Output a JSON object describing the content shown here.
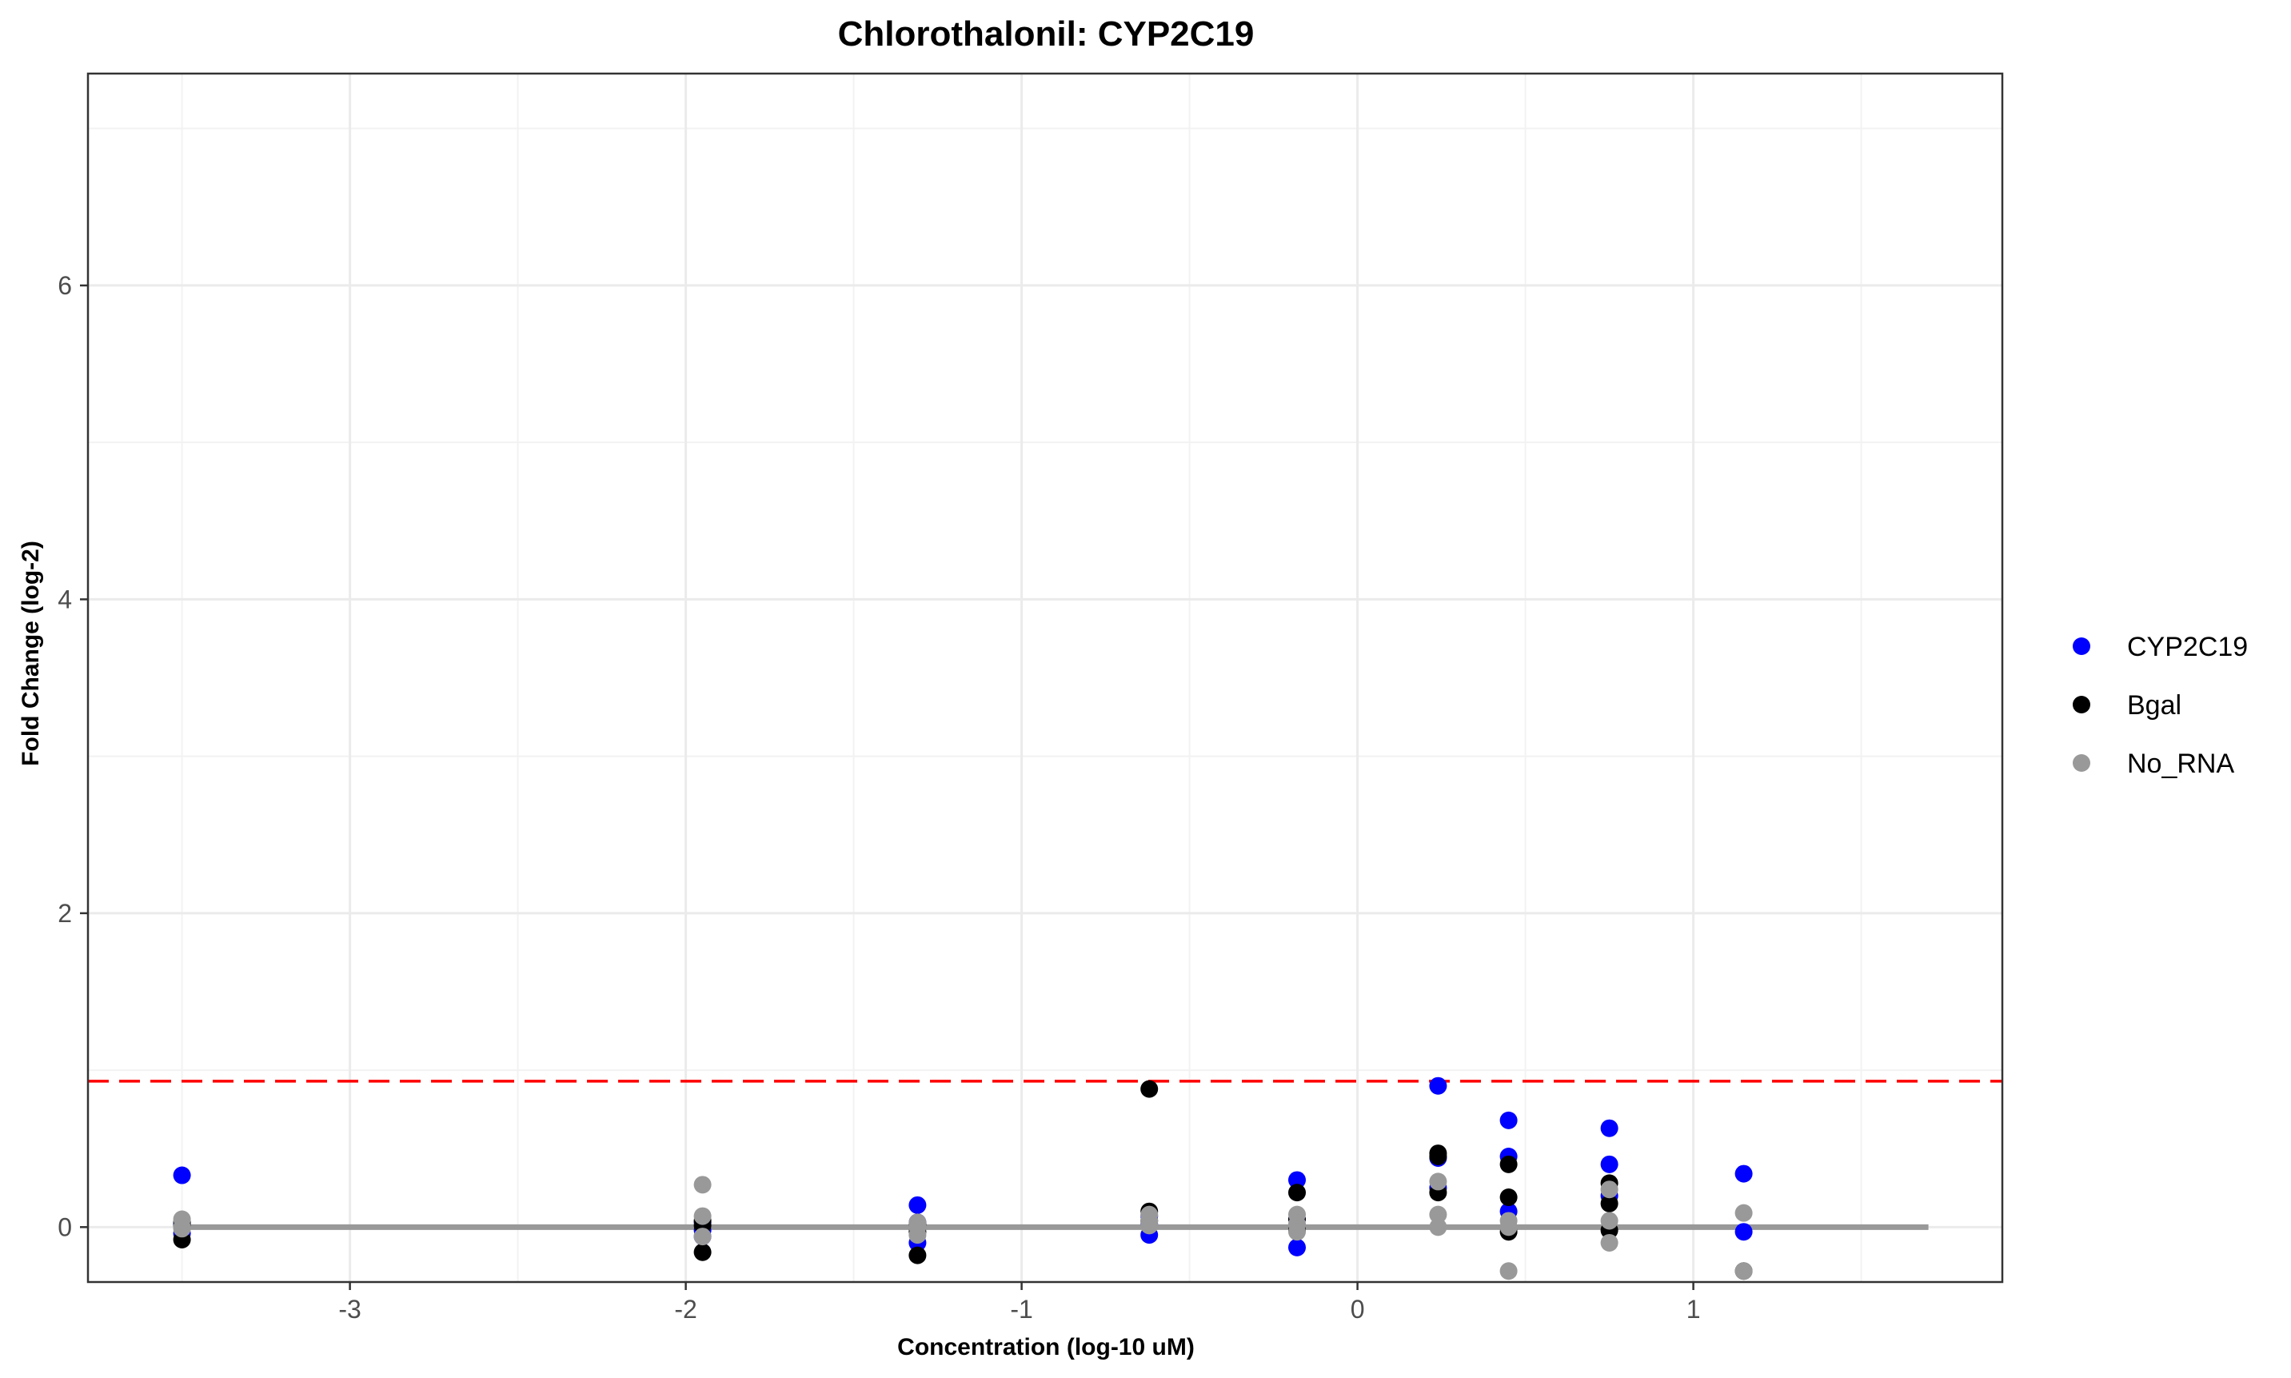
{
  "chart_data": {
    "type": "scatter",
    "title": "Chlorothalonil: CYP2C19",
    "xlabel": "Concentration (log-10 uM)",
    "ylabel": "Fold Change (log-2)",
    "xlim": [
      -3.78,
      1.92
    ],
    "ylim": [
      -0.35,
      7.35
    ],
    "x_ticks": [
      -3,
      -2,
      -1,
      0,
      1
    ],
    "x_tick_labels": [
      "-3",
      "-2",
      "-1",
      "0",
      "1"
    ],
    "x_minor_ticks": [
      -3.5,
      -2.5,
      -1.5,
      -0.5,
      0.5,
      1.5
    ],
    "y_ticks": [
      0,
      2,
      4,
      6
    ],
    "y_tick_labels": [
      "0",
      "2",
      "4",
      "6"
    ],
    "y_minor_ticks": [
      1,
      3,
      5,
      7
    ],
    "grid": true,
    "legend_position": "right",
    "reference_lines": [
      {
        "kind": "threshold",
        "y": 0.93,
        "color": "#ff0000",
        "dash": true
      },
      {
        "kind": "baseline",
        "y": 0,
        "x_range": [
          -3.5,
          1.7
        ],
        "color": "#999999"
      }
    ],
    "series": [
      {
        "name": "CYP2C19",
        "color": "#0000ff",
        "points": [
          [
            -3.5,
            0.33
          ],
          [
            -3.5,
            0.02
          ],
          [
            -3.5,
            -0.04
          ],
          [
            -1.95,
            0.03
          ],
          [
            -1.95,
            -0.02
          ],
          [
            -1.95,
            -0.06
          ],
          [
            -1.31,
            0.14
          ],
          [
            -1.31,
            -0.1
          ],
          [
            -1.31,
            0.03
          ],
          [
            -0.62,
            0.07
          ],
          [
            -0.62,
            0.02
          ],
          [
            -0.62,
            -0.05
          ],
          [
            -0.18,
            0.3
          ],
          [
            -0.18,
            -0.13
          ],
          [
            -0.18,
            0.05
          ],
          [
            0.24,
            0.9
          ],
          [
            0.24,
            0.44
          ],
          [
            0.24,
            0.25
          ],
          [
            0.45,
            0.68
          ],
          [
            0.45,
            0.45
          ],
          [
            0.45,
            0.1
          ],
          [
            0.75,
            0.63
          ],
          [
            0.75,
            0.4
          ],
          [
            0.75,
            0.2
          ],
          [
            1.15,
            0.34
          ],
          [
            1.15,
            -0.03
          ]
        ]
      },
      {
        "name": "Bgal",
        "color": "#000000",
        "points": [
          [
            -3.5,
            -0.08
          ],
          [
            -3.5,
            0.01
          ],
          [
            -3.5,
            0.03
          ],
          [
            -1.95,
            -0.16
          ],
          [
            -1.95,
            0.01
          ],
          [
            -1.95,
            0.04
          ],
          [
            -1.31,
            -0.18
          ],
          [
            -1.31,
            -0.03
          ],
          [
            -1.31,
            0.02
          ],
          [
            -0.62,
            0.88
          ],
          [
            -0.62,
            0.1
          ],
          [
            -0.62,
            0.04
          ],
          [
            -0.18,
            0.22
          ],
          [
            -0.18,
            0.05
          ],
          [
            -0.18,
            -0.02
          ],
          [
            0.24,
            0.47
          ],
          [
            0.24,
            0.22
          ],
          [
            0.24,
            0.45
          ],
          [
            0.45,
            0.4
          ],
          [
            0.45,
            0.19
          ],
          [
            0.45,
            -0.03
          ],
          [
            0.75,
            0.28
          ],
          [
            0.75,
            0.15
          ],
          [
            0.75,
            -0.02
          ],
          [
            1.15,
            -0.28
          ]
        ]
      },
      {
        "name": "No_RNA",
        "color": "#999999",
        "points": [
          [
            -3.5,
            0.05
          ],
          [
            -3.5,
            0.0
          ],
          [
            -3.5,
            -0.01
          ],
          [
            -1.95,
            0.27
          ],
          [
            -1.95,
            0.07
          ],
          [
            -1.95,
            -0.06
          ],
          [
            -1.31,
            0.03
          ],
          [
            -1.31,
            0.0
          ],
          [
            -1.31,
            -0.05
          ],
          [
            -0.62,
            0.08
          ],
          [
            -0.62,
            0.04
          ],
          [
            -0.62,
            0.01
          ],
          [
            -0.18,
            0.08
          ],
          [
            -0.18,
            0.02
          ],
          [
            -0.18,
            -0.03
          ],
          [
            0.24,
            0.29
          ],
          [
            0.24,
            0.08
          ],
          [
            0.24,
            0.0
          ],
          [
            0.45,
            0.04
          ],
          [
            0.45,
            0.0
          ],
          [
            0.45,
            -0.28
          ],
          [
            0.75,
            0.24
          ],
          [
            0.75,
            0.04
          ],
          [
            0.75,
            -0.1
          ],
          [
            1.15,
            0.09
          ],
          [
            1.15,
            -0.28
          ]
        ]
      }
    ]
  }
}
